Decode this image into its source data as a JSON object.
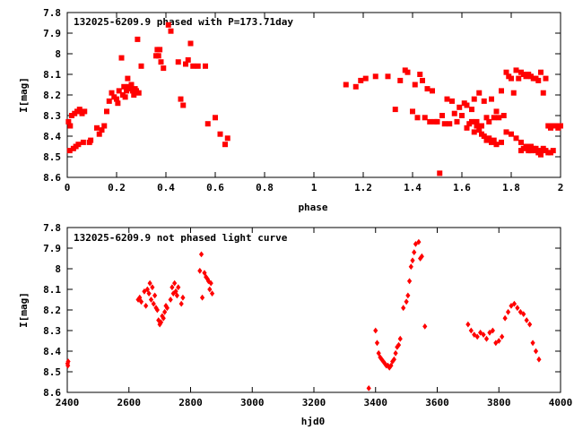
{
  "chart_data": [
    {
      "type": "scatter",
      "title": "132025-6209.9 phased with P=173.71day",
      "xlabel": "phase",
      "ylabel": "I[mag]",
      "xlim": [
        0,
        2
      ],
      "ylim": [
        8.6,
        7.8
      ],
      "y_inverted": true,
      "x_ticks": [
        0,
        0.2,
        0.4,
        0.6,
        0.8,
        1,
        1.2,
        1.4,
        1.6,
        1.8,
        2
      ],
      "x_tick_labels": [
        "0",
        "0.2",
        "0.4",
        "0.6",
        "0.8",
        "1",
        "1.2",
        "1.4",
        "1.6",
        "1.8",
        "2"
      ],
      "y_ticks": [
        7.8,
        7.9,
        8,
        8.1,
        8.2,
        8.3,
        8.4,
        8.5,
        8.6
      ],
      "y_tick_labels": [
        "7.8",
        "7.9",
        "8",
        "8.1",
        "8.2",
        "8.3",
        "8.4",
        "8.5",
        "8.6"
      ],
      "marker": "filled-square",
      "color": "#ff0000",
      "grid": false,
      "series": [
        {
          "x": [
            0.005,
            0.01,
            0.012,
            0.018,
            0.025,
            0.03,
            0.035,
            0.04,
            0.045,
            0.05,
            0.06,
            0.065,
            0.07,
            0.09,
            0.095,
            0.12,
            0.13,
            0.14,
            0.15,
            0.16,
            0.17,
            0.18,
            0.19,
            0.2,
            0.205,
            0.21,
            0.22,
            0.225,
            0.23,
            0.235,
            0.24,
            0.245,
            0.25,
            0.255,
            0.26,
            0.265,
            0.27,
            0.275,
            0.28,
            0.285,
            0.29,
            0.3,
            0.36,
            0.365,
            0.37,
            0.375,
            0.38,
            0.39,
            0.41,
            0.42,
            0.45,
            0.46,
            0.47,
            0.48,
            0.49,
            0.5,
            0.51,
            0.53,
            0.56,
            0.57,
            0.6,
            0.62,
            0.64,
            0.65
          ],
          "y": [
            8.33,
            8.47,
            8.35,
            8.3,
            8.46,
            8.29,
            8.45,
            8.28,
            8.44,
            8.27,
            8.29,
            8.43,
            8.28,
            8.43,
            8.42,
            8.36,
            8.39,
            8.37,
            8.35,
            8.28,
            8.23,
            8.19,
            8.21,
            8.22,
            8.24,
            8.18,
            8.02,
            8.2,
            8.16,
            8.21,
            8.18,
            8.12,
            8.16,
            8.17,
            8.15,
            8.18,
            8.2,
            8.17,
            8.18,
            7.93,
            8.19,
            8.06,
            8.01,
            7.98,
            8.01,
            7.98,
            8.04,
            8.07,
            7.86,
            7.89,
            8.04,
            8.22,
            8.25,
            8.05,
            8.03,
            7.95,
            8.06,
            8.06,
            8.06,
            8.34,
            8.31,
            8.39,
            8.44,
            8.41
          ]
        },
        {
          "x": [
            1.13,
            1.17,
            1.19,
            1.21,
            1.25,
            1.3,
            1.33,
            1.35,
            1.37,
            1.38,
            1.4,
            1.41,
            1.42,
            1.43,
            1.44,
            1.45,
            1.46,
            1.47,
            1.48,
            1.49,
            1.5,
            1.51,
            1.52,
            1.53,
            1.54,
            1.55,
            1.56,
            1.57,
            1.58,
            1.59,
            1.6,
            1.61,
            1.62,
            1.63,
            1.64,
            1.65,
            1.66,
            1.67,
            1.68,
            1.69,
            1.7,
            1.71,
            1.72,
            1.73,
            1.74,
            1.75,
            1.76,
            1.77,
            1.78,
            1.79,
            1.8,
            1.81,
            1.82,
            1.83,
            1.84,
            1.85,
            1.86,
            1.87,
            1.88,
            1.89,
            1.9,
            1.91,
            1.92,
            1.93,
            1.94,
            1.95,
            1.96,
            1.97,
            1.98,
            1.99,
            2.0,
            1.78,
            1.8,
            1.82,
            1.84,
            1.86,
            1.88,
            1.9,
            1.92,
            1.94,
            1.95,
            1.97
          ],
          "y": [
            8.15,
            8.16,
            8.13,
            8.12,
            8.11,
            8.11,
            8.27,
            8.13,
            8.08,
            8.09,
            8.28,
            8.15,
            8.31,
            8.1,
            8.13,
            8.31,
            8.17,
            8.33,
            8.18,
            8.33,
            8.33,
            8.58,
            8.3,
            8.34,
            8.22,
            8.34,
            8.23,
            8.29,
            8.33,
            8.26,
            8.3,
            8.24,
            8.25,
            8.34,
            8.27,
            8.22,
            8.33,
            8.19,
            8.35,
            8.23,
            8.31,
            8.33,
            8.22,
            8.31,
            8.28,
            8.31,
            8.18,
            8.3,
            8.09,
            8.11,
            8.12,
            8.19,
            8.08,
            8.12,
            8.09,
            8.1,
            8.11,
            8.1,
            8.11,
            8.12,
            8.12,
            8.13,
            8.09,
            8.19,
            8.12,
            8.35,
            8.36,
            8.35,
            8.35,
            8.36,
            8.35,
            8.38,
            8.39,
            8.41,
            8.43,
            8.45,
            8.47,
            8.46,
            8.47,
            8.47,
            8.48,
            8.47
          ]
        },
        {
          "x": [
            1.62,
            1.64,
            1.65,
            1.66,
            1.67,
            1.68,
            1.69,
            1.7,
            1.71,
            1.72,
            1.73,
            1.74,
            1.76,
            1.84,
            1.85,
            1.86,
            1.87,
            1.88,
            1.89,
            1.9,
            1.91,
            1.92,
            1.93,
            1.96
          ],
          "y": [
            8.36,
            8.33,
            8.38,
            8.35,
            8.37,
            8.39,
            8.4,
            8.42,
            8.41,
            8.43,
            8.42,
            8.44,
            8.43,
            8.47,
            8.46,
            8.45,
            8.47,
            8.45,
            8.46,
            8.47,
            8.48,
            8.49,
            8.46,
            8.48
          ]
        }
      ]
    },
    {
      "type": "scatter",
      "title": "132025-6209.9 not phased light curve",
      "xlabel": "hjd0",
      "ylabel": "I[mag]",
      "xlim": [
        2400,
        4000
      ],
      "ylim": [
        8.6,
        7.8
      ],
      "y_inverted": true,
      "x_ticks": [
        2400,
        2600,
        2800,
        3000,
        3200,
        3400,
        3600,
        3800,
        4000
      ],
      "x_tick_labels": [
        "2400",
        "2600",
        "2800",
        "3000",
        "3200",
        "3400",
        "3600",
        "3800",
        "4000"
      ],
      "y_ticks": [
        7.8,
        7.9,
        8,
        8.1,
        8.2,
        8.3,
        8.4,
        8.5,
        8.6
      ],
      "y_tick_labels": [
        "7.8",
        "7.9",
        "8",
        "8.1",
        "8.2",
        "8.3",
        "8.4",
        "8.5",
        "8.6"
      ],
      "marker": "filled-diamond",
      "color": "#ff0000",
      "grid": false,
      "series": [
        {
          "x": [
            2401,
            2402,
            2403,
            2630,
            2635,
            2640,
            2650,
            2655,
            2660,
            2665,
            2668,
            2672,
            2676,
            2680,
            2684,
            2688,
            2692,
            2696,
            2700,
            2704,
            2708,
            2712,
            2716,
            2720,
            2724,
            2735,
            2740,
            2744,
            2748,
            2752,
            2756,
            2760,
            2770,
            2775,
            2830,
            2835,
            2838,
            2845,
            2850,
            2855,
            2858,
            2862,
            2866,
            2870,
            3378,
            3400,
            3405,
            3410,
            3415,
            3420,
            3425,
            3430,
            3435,
            3440,
            3445,
            3450,
            3455,
            3460,
            3465,
            3470,
            3475,
            3480,
            3490,
            3500,
            3505,
            3510,
            3515,
            3520,
            3525,
            3530,
            3540,
            3545,
            3550,
            3560,
            3700,
            3710,
            3720,
            3730,
            3740,
            3750,
            3760,
            3770,
            3780,
            3790,
            3800,
            3810,
            3820,
            3830,
            3840,
            3850,
            3860,
            3870,
            3880,
            3890,
            3900,
            3910,
            3920,
            3930
          ],
          "y": [
            8.46,
            8.47,
            8.45,
            8.15,
            8.14,
            8.16,
            8.11,
            8.18,
            8.1,
            8.12,
            8.07,
            8.15,
            8.09,
            8.17,
            8.13,
            8.19,
            8.2,
            8.25,
            8.27,
            8.26,
            8.23,
            8.24,
            8.21,
            8.18,
            8.19,
            8.15,
            8.09,
            8.12,
            8.07,
            8.11,
            8.13,
            8.09,
            8.17,
            8.14,
            8.01,
            7.93,
            8.14,
            8.02,
            8.04,
            8.05,
            8.06,
            8.1,
            8.07,
            8.12,
            8.58,
            8.3,
            8.36,
            8.41,
            8.43,
            8.44,
            8.45,
            8.46,
            8.47,
            8.47,
            8.48,
            8.47,
            8.45,
            8.44,
            8.41,
            8.38,
            8.37,
            8.34,
            8.19,
            8.16,
            8.13,
            8.06,
            7.99,
            7.96,
            7.92,
            7.88,
            7.87,
            7.95,
            7.94,
            8.28,
            8.27,
            8.3,
            8.32,
            8.33,
            8.31,
            8.32,
            8.34,
            8.31,
            8.3,
            8.36,
            8.35,
            8.33,
            8.24,
            8.21,
            8.18,
            8.17,
            8.19,
            8.21,
            8.22,
            8.25,
            8.27,
            8.36,
            8.4,
            8.44
          ]
        }
      ]
    }
  ]
}
